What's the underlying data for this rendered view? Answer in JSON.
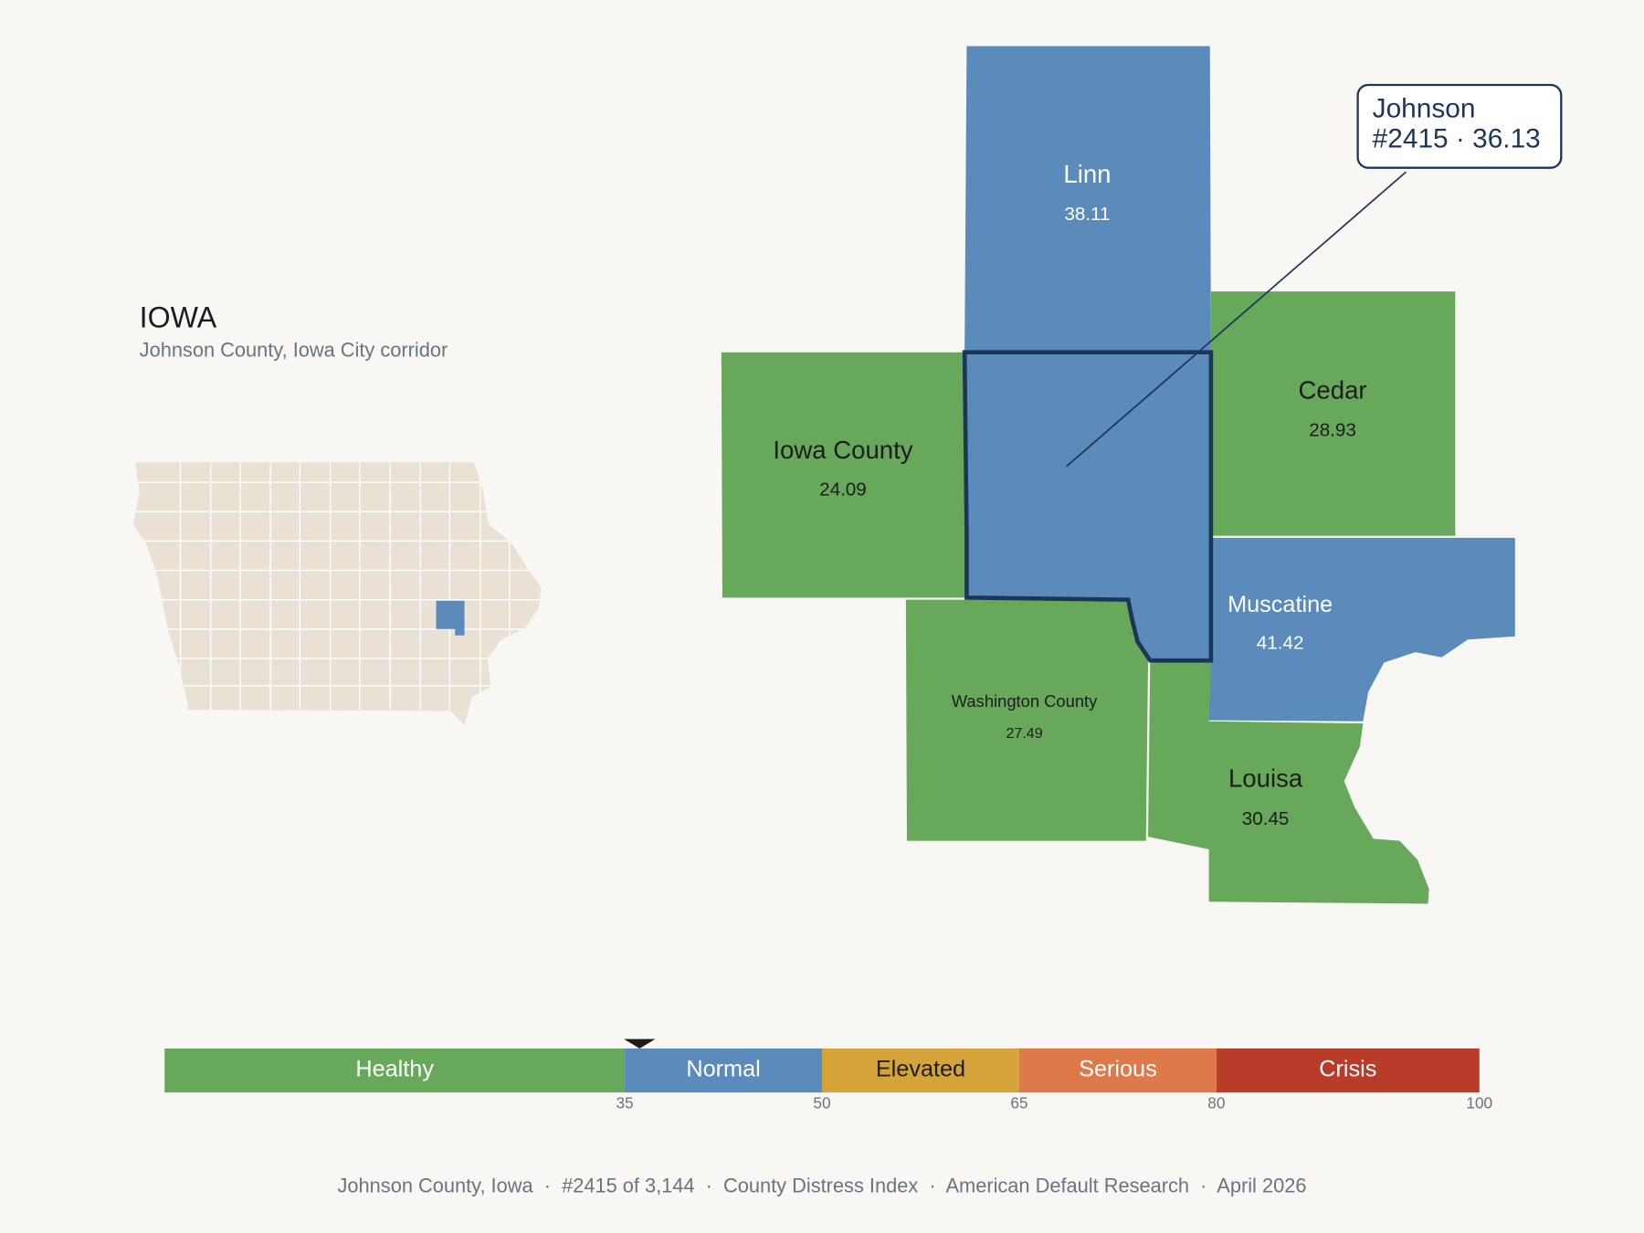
{
  "header": {
    "title": "IOWA",
    "subtitle": "Johnson County, Iowa City corridor"
  },
  "counties": [
    {
      "name": "Linn",
      "value": 38.11
    },
    {
      "name": "Iowa County",
      "value": 24.09
    },
    {
      "name": "Cedar",
      "value": 28.93
    },
    {
      "name": "Muscatine",
      "value": 41.42
    },
    {
      "name": "Washington County",
      "value": 27.49
    },
    {
      "name": "Louisa",
      "value": 30.45
    },
    {
      "name": "Johnson",
      "value": 36.13
    }
  ],
  "callout": "#2415 · 36.13",
  "scale": {
    "range": [
      0,
      100
    ],
    "bands": [
      {
        "name": "Healthy",
        "upper": 35,
        "color": "#67a85a",
        "text_color": "#ffffff"
      },
      {
        "name": "Normal",
        "upper": 50,
        "color": "#5b8bbb",
        "text_color": "#ffffff"
      },
      {
        "name": "Elevated",
        "upper": 65,
        "color": "#d4a33a",
        "text_color": "#1c1c1c"
      },
      {
        "name": "Serious",
        "upper": 80,
        "color": "#de7a4a",
        "text_color": "#ffffff"
      },
      {
        "name": "Crisis",
        "upper": 100,
        "color": "#b93c2a",
        "text_color": "#ffffff"
      }
    ]
  },
  "footer": "Johnson County, Iowa  ·  #2415 of 3,144  ·  County Distress Index  ·  American Default Research  ·  April 2026"
}
